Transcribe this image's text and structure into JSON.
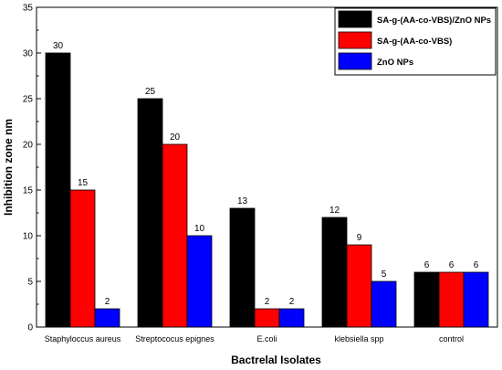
{
  "chart_data": {
    "type": "bar",
    "title": "",
    "xlabel": "Bactrelal Isolates",
    "ylabel": "Inhibition zone nm",
    "ylim": [
      0,
      35
    ],
    "yticks": [
      "0",
      "5",
      "10",
      "15",
      "20",
      "25",
      "30",
      "35"
    ],
    "categories": [
      "Staphyloccus aureus",
      "Streptococus epignes",
      "E.coli",
      "klebsiella spp",
      "control"
    ],
    "series": [
      {
        "name": "SA-g-(AA-co-VBS)/ZnO NPs",
        "values": [
          30,
          25,
          13,
          12,
          6
        ],
        "color": "#000000"
      },
      {
        "name": "SA-g-(AA-co-VBS)",
        "values": [
          15,
          20,
          2,
          9,
          6
        ],
        "color": "#ff0000"
      },
      {
        "name": "ZnO NPs",
        "values": [
          2,
          10,
          2,
          5,
          6
        ],
        "color": "#0000ff"
      }
    ],
    "data_labels": [
      [
        "30",
        "25",
        "13",
        "12",
        "6"
      ],
      [
        "15",
        "20",
        "2",
        "9",
        "6"
      ],
      [
        "2",
        "10",
        "2",
        "5",
        "6"
      ]
    ],
    "legend_position": "top-right",
    "grid": false
  }
}
